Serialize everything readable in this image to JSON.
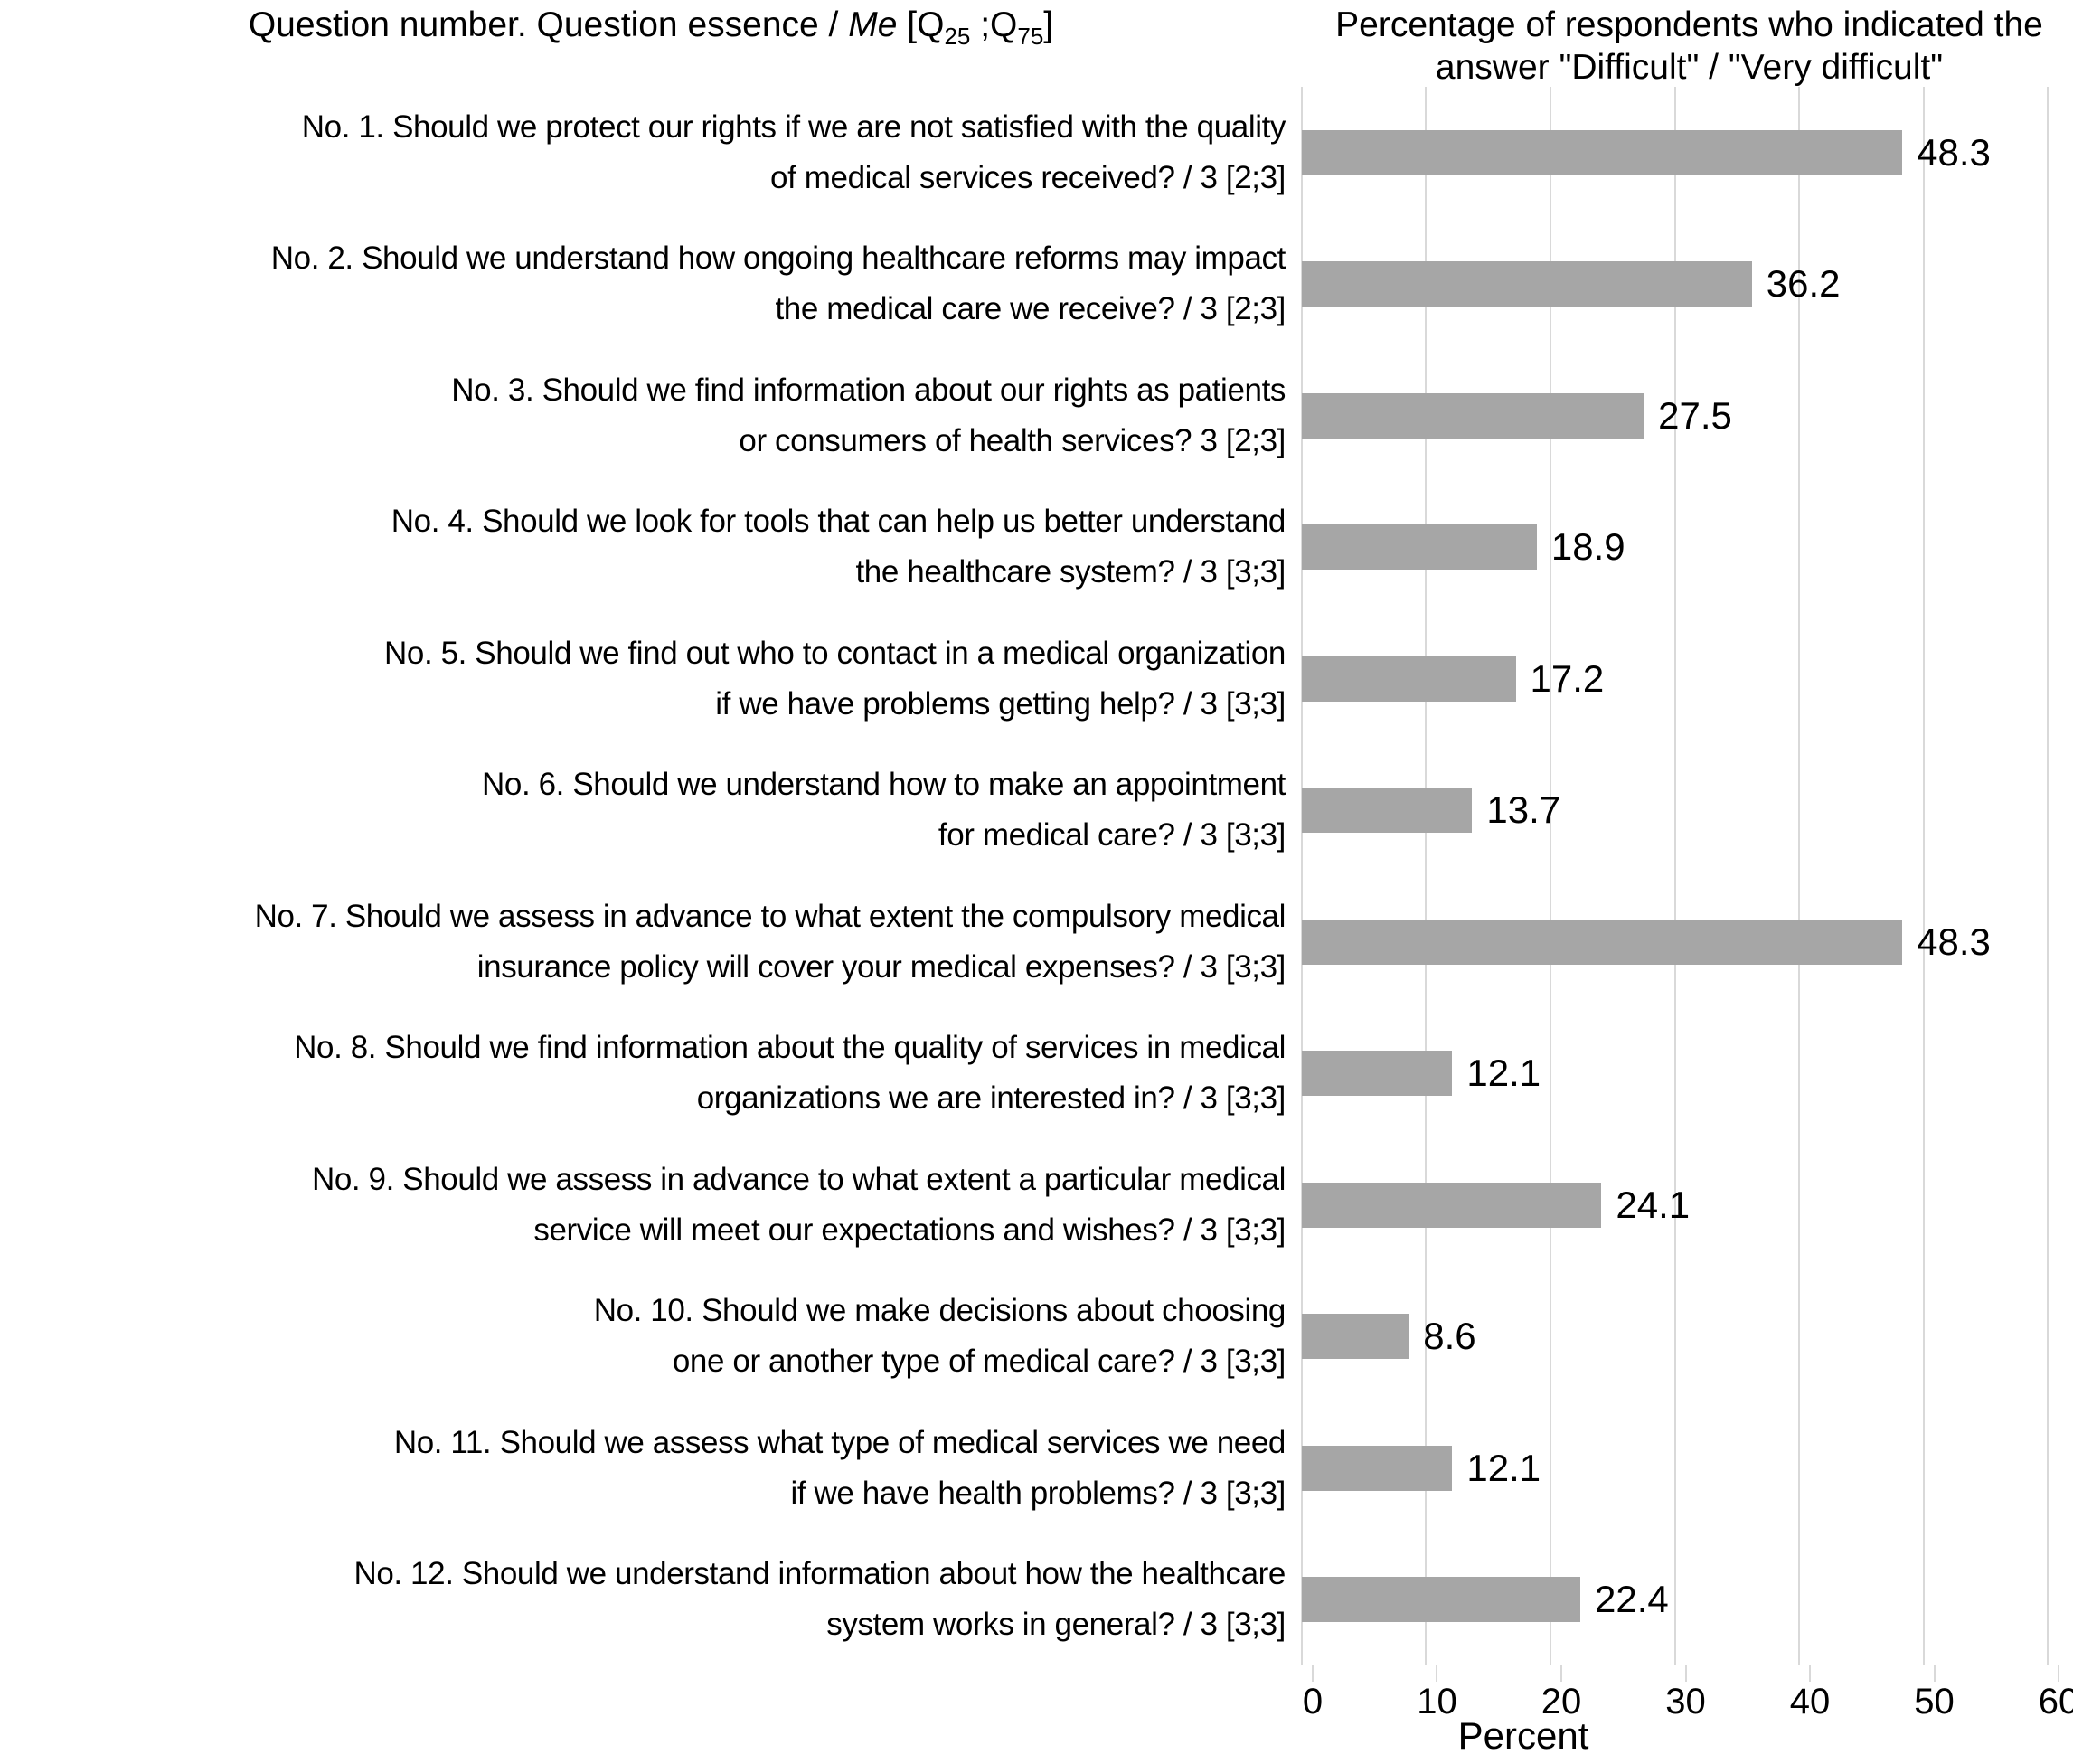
{
  "chart_data": {
    "type": "bar",
    "orientation": "horizontal",
    "title_left": {
      "text": "Question number. Question essence / Me [Q25 ;Q75]",
      "prefix": "Question number. Question essence / ",
      "me": "Me",
      "q_open": " [Q",
      "sub25": "25",
      "semi": " ;Q",
      "sub75": "75",
      "close": "]"
    },
    "title_right": "Percentage of respondents who indicated the answer \"Difficult\" / \"Very difficult\"",
    "xlabel": "Percent",
    "xlim": [
      0,
      60
    ],
    "x_ticks": [
      0,
      10,
      20,
      30,
      40,
      50,
      60
    ],
    "grid": true,
    "bar_color": "#a6a6a6",
    "gridline_color": "#d9d9d9",
    "rows": [
      {
        "label_lines": [
          "No. 1. Should we protect our rights if we are not satisfied with the quality",
          "of medical services received? / 3 [2;3]"
        ],
        "value": 48.3
      },
      {
        "label_lines": [
          "No. 2. Should we understand how ongoing healthcare reforms may impact",
          "the medical care we receive? / 3 [2;3]"
        ],
        "value": 36.2
      },
      {
        "label_lines": [
          "No. 3. Should we find information about our rights as patients",
          "or consumers of health services? 3 [2;3]"
        ],
        "value": 27.5
      },
      {
        "label_lines": [
          "No. 4. Should we look for tools that can help us better understand",
          "the healthcare system? / 3 [3;3]"
        ],
        "value": 18.9
      },
      {
        "label_lines": [
          "No. 5. Should we find out who to contact in a medical organization",
          "if we have problems getting help? / 3 [3;3]"
        ],
        "value": 17.2
      },
      {
        "label_lines": [
          "No. 6. Should we understand how to make an appointment",
          "for medical care? / 3 [3;3]"
        ],
        "value": 13.7
      },
      {
        "label_lines": [
          "No. 7. Should we assess in advance to what extent the compulsory medical",
          "insurance policy will cover your medical expenses? / 3 [3;3]"
        ],
        "value": 48.3
      },
      {
        "label_lines": [
          "No. 8. Should we find information about the quality of services in medical",
          "organizations we are interested in? / 3 [3;3]"
        ],
        "value": 12.1
      },
      {
        "label_lines": [
          "No. 9. Should we assess in advance to what extent a particular medical",
          "service will meet our expectations and wishes? / 3 [3;3]"
        ],
        "value": 24.1
      },
      {
        "label_lines": [
          "No. 10. Should we make decisions about choosing",
          "one or another type of medical care? / 3 [3;3]"
        ],
        "value": 8.6
      },
      {
        "label_lines": [
          "No. 11. Should we assess what type of medical services we need",
          "if we have health problems? / 3 [3;3]"
        ],
        "value": 12.1
      },
      {
        "label_lines": [
          "No. 12. Should we understand information about how the healthcare",
          "system works in general? / 3 [3;3]"
        ],
        "value": 22.4
      }
    ]
  }
}
